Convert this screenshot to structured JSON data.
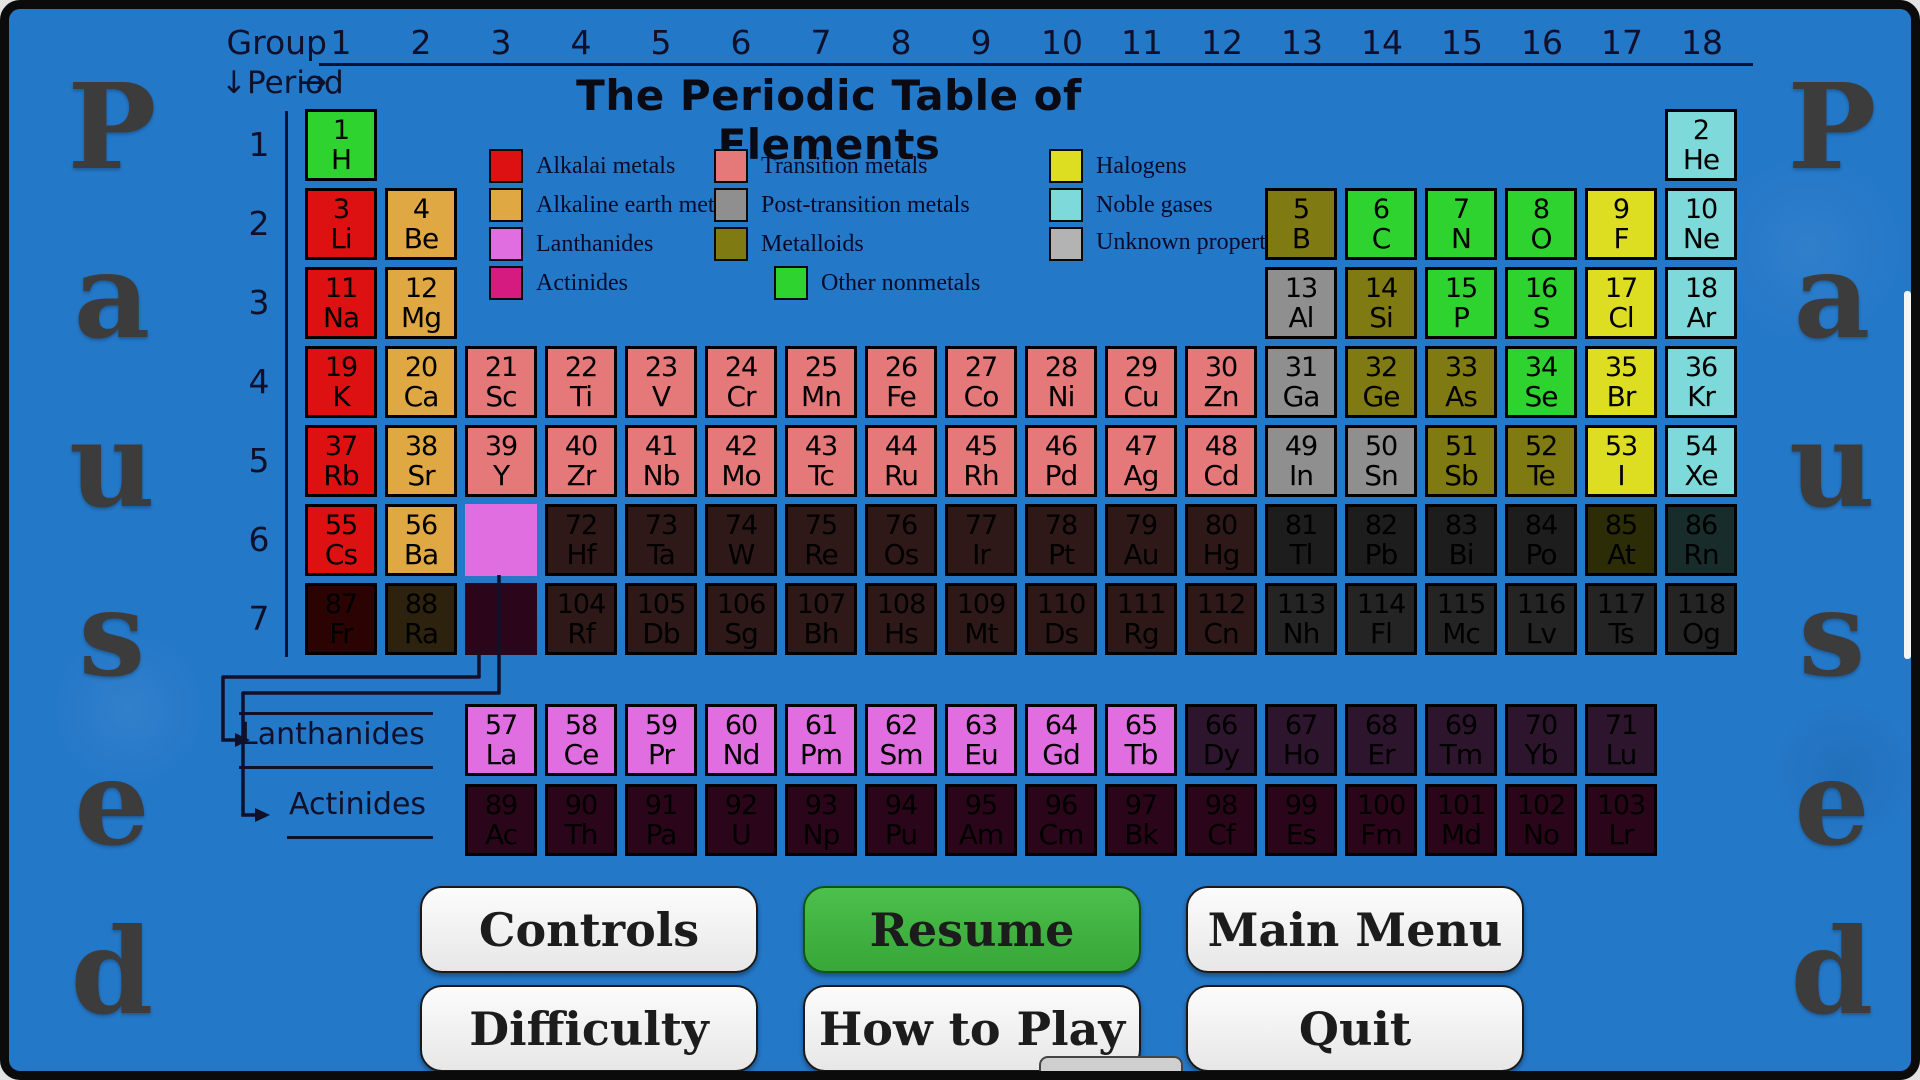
{
  "header": {
    "title": "The Periodic Table of Elements",
    "group_label": "Group →",
    "period_label": "↓Period",
    "group_numbers": [
      "1",
      "2",
      "3",
      "4",
      "5",
      "6",
      "7",
      "8",
      "9",
      "10",
      "11",
      "12",
      "13",
      "14",
      "15",
      "16",
      "17",
      "18"
    ],
    "period_numbers": [
      "1",
      "2",
      "3",
      "4",
      "5",
      "6",
      "7"
    ]
  },
  "colors": {
    "alkali": "#dd1111",
    "alkaline": "#e0a843",
    "lanthanide": "#e06ee0",
    "actinide": "#d61b80",
    "transition": "#e57878",
    "post": "#8f8f8f",
    "metalloid": "#7f7a12",
    "nonmetal": "#2fd32f",
    "halogen": "#dddd22",
    "noble": "#7edada",
    "unknown": "#b3b3b3",
    "background": "#2478c8"
  },
  "legend": {
    "col1": [
      {
        "label": "Alkalai metals",
        "cat": "alkali"
      },
      {
        "label": "Alkaline earth metals",
        "cat": "alkaline"
      },
      {
        "label": "Lanthanides",
        "cat": "lanthanide"
      },
      {
        "label": "Actinides",
        "cat": "actinide"
      }
    ],
    "col2": [
      {
        "label": "Transition metals",
        "cat": "transition"
      },
      {
        "label": "Post-transition metals",
        "cat": "post"
      },
      {
        "label": "Metalloids",
        "cat": "metalloid"
      },
      {
        "label": "Other nonmetals",
        "cat": "nonmetal"
      }
    ],
    "col3": [
      {
        "label": "Halogens",
        "cat": "halogen"
      },
      {
        "label": "Noble gases",
        "cat": "noble"
      },
      {
        "label": "Unknown properties",
        "cat": "unknown"
      }
    ]
  },
  "table": {
    "lanthanides_label": "Lanthanides",
    "actinides_label": "Actinides",
    "periods_cells": [
      [
        [
          1,
          1,
          "H",
          "nonmetal",
          0
        ],
        [
          18,
          2,
          "He",
          "noble",
          0
        ]
      ],
      [
        [
          1,
          3,
          "Li",
          "alkali",
          0
        ],
        [
          2,
          4,
          "Be",
          "alkaline",
          0
        ],
        [
          13,
          5,
          "B",
          "metalloid",
          0
        ],
        [
          14,
          6,
          "C",
          "nonmetal",
          0
        ],
        [
          15,
          7,
          "N",
          "nonmetal",
          0
        ],
        [
          16,
          8,
          "O",
          "nonmetal",
          0
        ],
        [
          17,
          9,
          "F",
          "halogen",
          0
        ],
        [
          18,
          10,
          "Ne",
          "noble",
          0
        ]
      ],
      [
        [
          1,
          11,
          "Na",
          "alkali",
          0
        ],
        [
          2,
          12,
          "Mg",
          "alkaline",
          0
        ],
        [
          13,
          13,
          "Al",
          "post",
          0
        ],
        [
          14,
          14,
          "Si",
          "metalloid",
          0
        ],
        [
          15,
          15,
          "P",
          "nonmetal",
          0
        ],
        [
          16,
          16,
          "S",
          "nonmetal",
          0
        ],
        [
          17,
          17,
          "Cl",
          "halogen",
          0
        ],
        [
          18,
          18,
          "Ar",
          "noble",
          0
        ]
      ],
      [
        [
          1,
          19,
          "K",
          "alkali",
          0
        ],
        [
          2,
          20,
          "Ca",
          "alkaline",
          0
        ],
        [
          3,
          21,
          "Sc",
          "transition",
          0
        ],
        [
          4,
          22,
          "Ti",
          "transition",
          0
        ],
        [
          5,
          23,
          "V",
          "transition",
          0
        ],
        [
          6,
          24,
          "Cr",
          "transition",
          0
        ],
        [
          7,
          25,
          "Mn",
          "transition",
          0
        ],
        [
          8,
          26,
          "Fe",
          "transition",
          0
        ],
        [
          9,
          27,
          "Co",
          "transition",
          0
        ],
        [
          10,
          28,
          "Ni",
          "transition",
          0
        ],
        [
          11,
          29,
          "Cu",
          "transition",
          0
        ],
        [
          12,
          30,
          "Zn",
          "transition",
          0
        ],
        [
          13,
          31,
          "Ga",
          "post",
          0
        ],
        [
          14,
          32,
          "Ge",
          "metalloid",
          0
        ],
        [
          15,
          33,
          "As",
          "metalloid",
          0
        ],
        [
          16,
          34,
          "Se",
          "nonmetal",
          0
        ],
        [
          17,
          35,
          "Br",
          "halogen",
          0
        ],
        [
          18,
          36,
          "Kr",
          "noble",
          0
        ]
      ],
      [
        [
          1,
          37,
          "Rb",
          "alkali",
          0
        ],
        [
          2,
          38,
          "Sr",
          "alkaline",
          0
        ],
        [
          3,
          39,
          "Y",
          "transition",
          0
        ],
        [
          4,
          40,
          "Zr",
          "transition",
          0
        ],
        [
          5,
          41,
          "Nb",
          "transition",
          0
        ],
        [
          6,
          42,
          "Mo",
          "transition",
          0
        ],
        [
          7,
          43,
          "Tc",
          "transition",
          0
        ],
        [
          8,
          44,
          "Ru",
          "transition",
          0
        ],
        [
          9,
          45,
          "Rh",
          "transition",
          0
        ],
        [
          10,
          46,
          "Pd",
          "transition",
          0
        ],
        [
          11,
          47,
          "Ag",
          "transition",
          0
        ],
        [
          12,
          48,
          "Cd",
          "transition",
          0
        ],
        [
          13,
          49,
          "In",
          "post",
          0
        ],
        [
          14,
          50,
          "Sn",
          "post",
          0
        ],
        [
          15,
          51,
          "Sb",
          "metalloid",
          0
        ],
        [
          16,
          52,
          "Te",
          "metalloid",
          0
        ],
        [
          17,
          53,
          "I",
          "halogen",
          0
        ],
        [
          18,
          54,
          "Xe",
          "noble",
          0
        ]
      ],
      [
        [
          1,
          55,
          "Cs",
          "alkali",
          0
        ],
        [
          2,
          56,
          "Ba",
          "alkaline",
          0
        ],
        [
          3,
          null,
          null,
          "lanthanide",
          0
        ],
        [
          4,
          72,
          "Hf",
          "transition",
          1
        ],
        [
          5,
          73,
          "Ta",
          "transition",
          1
        ],
        [
          6,
          74,
          "W",
          "transition",
          1
        ],
        [
          7,
          75,
          "Re",
          "transition",
          1
        ],
        [
          8,
          76,
          "Os",
          "transition",
          1
        ],
        [
          9,
          77,
          "Ir",
          "transition",
          1
        ],
        [
          10,
          78,
          "Pt",
          "transition",
          1
        ],
        [
          11,
          79,
          "Au",
          "transition",
          1
        ],
        [
          12,
          80,
          "Hg",
          "transition",
          1
        ],
        [
          13,
          81,
          "Tl",
          "post",
          1
        ],
        [
          14,
          82,
          "Pb",
          "post",
          1
        ],
        [
          15,
          83,
          "Bi",
          "post",
          1
        ],
        [
          16,
          84,
          "Po",
          "post",
          1
        ],
        [
          17,
          85,
          "At",
          "halogen",
          1
        ],
        [
          18,
          86,
          "Rn",
          "noble",
          1
        ]
      ],
      [
        [
          1,
          87,
          "Fr",
          "alkali",
          1
        ],
        [
          2,
          88,
          "Ra",
          "alkaline",
          1
        ],
        [
          3,
          null,
          null,
          "actinide",
          1
        ],
        [
          4,
          104,
          "Rf",
          "transition",
          1
        ],
        [
          5,
          105,
          "Db",
          "transition",
          1
        ],
        [
          6,
          106,
          "Sg",
          "transition",
          1
        ],
        [
          7,
          107,
          "Bh",
          "transition",
          1
        ],
        [
          8,
          108,
          "Hs",
          "transition",
          1
        ],
        [
          9,
          109,
          "Mt",
          "transition",
          1
        ],
        [
          10,
          110,
          "Ds",
          "transition",
          1
        ],
        [
          11,
          111,
          "Rg",
          "transition",
          1
        ],
        [
          12,
          112,
          "Cn",
          "transition",
          1
        ],
        [
          13,
          113,
          "Nh",
          "unknown",
          1
        ],
        [
          14,
          114,
          "Fl",
          "unknown",
          1
        ],
        [
          15,
          115,
          "Mc",
          "unknown",
          1
        ],
        [
          16,
          116,
          "Lv",
          "unknown",
          1
        ],
        [
          17,
          117,
          "Ts",
          "unknown",
          1
        ],
        [
          18,
          118,
          "Og",
          "unknown",
          1
        ]
      ]
    ],
    "lanthanide_row": [
      [
        57,
        "La",
        0
      ],
      [
        58,
        "Ce",
        0
      ],
      [
        59,
        "Pr",
        0
      ],
      [
        60,
        "Nd",
        0
      ],
      [
        61,
        "Pm",
        0
      ],
      [
        62,
        "Sm",
        0
      ],
      [
        63,
        "Eu",
        0
      ],
      [
        64,
        "Gd",
        0
      ],
      [
        65,
        "Tb",
        0
      ],
      [
        66,
        "Dy",
        1
      ],
      [
        67,
        "Ho",
        1
      ],
      [
        68,
        "Er",
        1
      ],
      [
        69,
        "Tm",
        1
      ],
      [
        70,
        "Yb",
        1
      ],
      [
        71,
        "Lu",
        1
      ]
    ],
    "actinide_row": [
      [
        89,
        "Ac",
        1
      ],
      [
        90,
        "Th",
        1
      ],
      [
        91,
        "Pa",
        1
      ],
      [
        92,
        "U",
        1
      ],
      [
        93,
        "Np",
        1
      ],
      [
        94,
        "Pu",
        1
      ],
      [
        95,
        "Am",
        1
      ],
      [
        96,
        "Cm",
        1
      ],
      [
        97,
        "Bk",
        1
      ],
      [
        98,
        "Cf",
        1
      ],
      [
        99,
        "Es",
        1
      ],
      [
        100,
        "Fm",
        1
      ],
      [
        101,
        "Md",
        1
      ],
      [
        102,
        "No",
        1
      ],
      [
        103,
        "Lr",
        1
      ]
    ]
  },
  "overlay": {
    "paused_text": "Paused"
  },
  "menu": {
    "row1": [
      {
        "label": "Controls",
        "style": "light"
      },
      {
        "label": "Resume",
        "style": "green"
      },
      {
        "label": "Main Menu",
        "style": "light"
      }
    ],
    "row2": [
      {
        "label": "Difficulty",
        "style": "light"
      },
      {
        "label": "How to Play",
        "style": "light"
      },
      {
        "label": "Quit",
        "style": "light"
      }
    ]
  }
}
